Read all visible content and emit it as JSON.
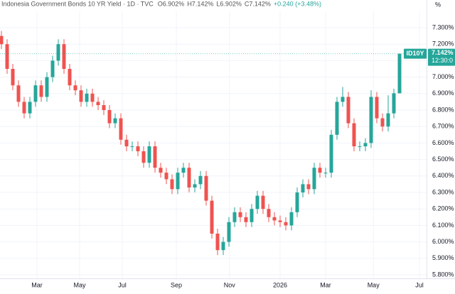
{
  "chart_data": {
    "type": "candlestick",
    "title": "Indonesia Government Bonds 10 YR Yield · 1D · TVC",
    "header_values": [
      "O6.902%",
      "H7.142%",
      "L6.902%",
      "C7.142%",
      "+0.240 (+3.48%)"
    ],
    "y_unit": "%",
    "open": [
      7.25,
      7.2,
      7.05,
      6.95,
      6.85,
      6.78,
      6.85,
      6.95,
      6.88,
      7.0,
      7.1,
      7.2,
      7.05,
      6.95,
      6.92,
      6.85,
      6.9,
      6.85,
      6.83,
      6.8,
      6.72,
      6.75,
      6.62,
      6.58,
      6.58,
      6.55,
      6.48,
      6.58,
      6.45,
      6.42,
      6.38,
      6.32,
      6.42,
      6.45,
      6.33,
      6.35,
      6.4,
      6.25,
      6.05,
      5.95,
      6.0,
      6.12,
      6.18,
      6.15,
      6.12,
      6.2,
      6.28,
      6.2,
      6.15,
      6.13,
      6.12,
      6.1,
      6.18,
      6.3,
      6.35,
      6.32,
      6.45,
      6.42,
      6.42,
      6.65,
      6.85,
      6.88,
      6.72,
      6.58,
      6.58,
      6.6,
      6.88,
      6.75,
      6.7,
      6.78,
      6.902
    ],
    "high": [
      7.28,
      7.23,
      7.08,
      6.98,
      6.88,
      6.88,
      6.98,
      6.98,
      7.03,
      7.13,
      7.23,
      7.23,
      7.08,
      6.98,
      6.95,
      6.93,
      6.93,
      6.88,
      6.86,
      6.83,
      6.78,
      6.78,
      6.65,
      6.61,
      6.61,
      6.58,
      6.61,
      6.61,
      6.48,
      6.45,
      6.41,
      6.45,
      6.48,
      6.48,
      6.38,
      6.43,
      6.43,
      6.28,
      6.08,
      6.03,
      6.15,
      6.21,
      6.21,
      6.18,
      6.23,
      6.31,
      6.31,
      6.23,
      6.18,
      6.16,
      6.15,
      6.21,
      6.33,
      6.38,
      6.38,
      6.48,
      6.48,
      6.45,
      6.68,
      6.88,
      6.94,
      6.91,
      6.75,
      6.61,
      6.63,
      6.92,
      6.91,
      6.78,
      6.89,
      6.93,
      7.142
    ],
    "low": [
      7.17,
      7.02,
      6.92,
      6.82,
      6.75,
      6.75,
      6.82,
      6.85,
      6.85,
      6.97,
      7.07,
      7.02,
      6.92,
      6.89,
      6.82,
      6.82,
      6.82,
      6.8,
      6.77,
      6.69,
      6.69,
      6.59,
      6.55,
      6.55,
      6.52,
      6.45,
      6.45,
      6.42,
      6.39,
      6.35,
      6.29,
      6.29,
      6.39,
      6.3,
      6.3,
      6.32,
      6.22,
      6.02,
      5.92,
      5.92,
      5.97,
      6.09,
      6.12,
      6.09,
      6.09,
      6.17,
      6.17,
      6.12,
      6.1,
      6.09,
      6.07,
      6.07,
      6.15,
      6.27,
      6.29,
      6.29,
      6.39,
      6.39,
      6.39,
      6.62,
      6.82,
      6.69,
      6.55,
      6.55,
      6.55,
      6.57,
      6.72,
      6.67,
      6.67,
      6.75,
      6.902
    ],
    "close": [
      7.2,
      7.05,
      6.95,
      6.85,
      6.78,
      6.85,
      6.95,
      6.88,
      7.0,
      7.1,
      7.2,
      7.05,
      6.95,
      6.92,
      6.85,
      6.9,
      6.85,
      6.83,
      6.8,
      6.72,
      6.75,
      6.62,
      6.58,
      6.58,
      6.55,
      6.48,
      6.58,
      6.45,
      6.42,
      6.38,
      6.32,
      6.42,
      6.45,
      6.33,
      6.35,
      6.4,
      6.25,
      6.05,
      5.95,
      6.0,
      6.12,
      6.18,
      6.15,
      6.12,
      6.2,
      6.28,
      6.2,
      6.15,
      6.13,
      6.12,
      6.1,
      6.18,
      6.3,
      6.35,
      6.32,
      6.45,
      6.42,
      6.42,
      6.65,
      6.85,
      6.88,
      6.72,
      6.58,
      6.58,
      6.6,
      6.88,
      6.75,
      6.7,
      6.78,
      6.902,
      7.142
    ],
    "up_color": "#26a69a",
    "down_color": "#ef5350",
    "xlim": [
      -0.25,
      74.75
    ],
    "xticks": [
      {
        "value": 6.25,
        "label": "Mar"
      },
      {
        "value": 13.75,
        "label": "May"
      },
      {
        "value": 21.25,
        "label": "Jul"
      },
      {
        "value": 30.75,
        "label": "Sep"
      },
      {
        "value": 40.1,
        "label": "Nov"
      },
      {
        "value": 49,
        "label": "2026"
      },
      {
        "value": 57,
        "label": "Mar"
      },
      {
        "value": 65.4,
        "label": "May"
      },
      {
        "value": 73.5,
        "label": "Jul"
      }
    ],
    "ylim": [
      5.8,
      7.3
    ],
    "yticks": [
      {
        "value": 5.8,
        "label": "5.800%"
      },
      {
        "value": 5.9,
        "label": "5.900%"
      },
      {
        "value": 6.0,
        "label": "6.000%"
      },
      {
        "value": 6.1,
        "label": "6.100%"
      },
      {
        "value": 6.2,
        "label": "6.200%"
      },
      {
        "value": 6.3,
        "label": "6.300%"
      },
      {
        "value": 6.4,
        "label": "6.400%"
      },
      {
        "value": 6.5,
        "label": "6.500%"
      },
      {
        "value": 6.6,
        "label": "6.600%"
      },
      {
        "value": 6.7,
        "label": "6.700%"
      },
      {
        "value": 6.8,
        "label": "6.800%"
      },
      {
        "value": 6.9,
        "label": "6.900%"
      },
      {
        "value": 7.0,
        "label": "7.000%"
      },
      {
        "value": 7.1,
        "label": "7.100%"
      },
      {
        "value": 7.2,
        "label": "7.200%"
      },
      {
        "value": 7.3,
        "label": "7.300%"
      }
    ],
    "grid": true,
    "last_price": {
      "symbol": "ID10Y",
      "value": 7.142,
      "label": "7.142%",
      "countdown": "12:30:0"
    }
  }
}
